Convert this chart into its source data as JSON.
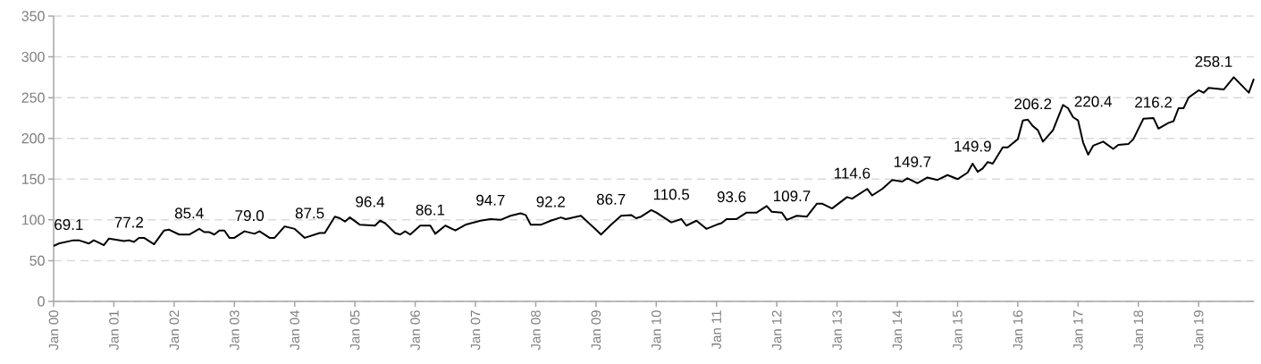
{
  "chart_data": {
    "type": "line",
    "x": [
      "2000-01",
      "2000-02",
      "2000-05",
      "2000-06",
      "2000-08",
      "2000-09",
      "2000-11",
      "2000-12",
      "2001-03",
      "2001-04",
      "2001-05",
      "2001-06",
      "2001-07",
      "2001-09",
      "2001-11",
      "2001-12",
      "2002-02",
      "2002-04",
      "2002-06",
      "2002-07",
      "2002-08",
      "2002-09",
      "2002-10",
      "2002-11",
      "2002-12",
      "2003-01",
      "2003-03",
      "2003-05",
      "2003-06",
      "2003-08",
      "2003-09",
      "2003-11",
      "2004-01",
      "2004-03",
      "2004-06",
      "2004-07",
      "2004-09",
      "2004-10",
      "2004-11",
      "2004-12",
      "2005-02",
      "2005-05",
      "2005-06",
      "2005-07",
      "2005-09",
      "2005-10",
      "2005-11",
      "2005-12",
      "2006-02",
      "2006-04",
      "2006-05",
      "2006-07",
      "2006-09",
      "2006-11",
      "2007-02",
      "2007-04",
      "2007-06",
      "2007-08",
      "2007-10",
      "2007-11",
      "2007-12",
      "2008-02",
      "2008-04",
      "2008-06",
      "2008-07",
      "2008-10",
      "2009-01",
      "2009-02",
      "2009-04",
      "2009-06",
      "2009-08",
      "2009-09",
      "2009-10",
      "2009-12",
      "2010-01",
      "2010-04",
      "2010-06",
      "2010-07",
      "2010-09",
      "2010-11",
      "2011-01",
      "2011-02",
      "2011-03",
      "2011-05",
      "2011-07",
      "2011-09",
      "2011-11",
      "2011-12",
      "2012-02",
      "2012-03",
      "2012-05",
      "2012-07",
      "2012-09",
      "2012-10",
      "2012-12",
      "2013-03",
      "2013-04",
      "2013-07",
      "2013-08",
      "2013-10",
      "2013-12",
      "2014-02",
      "2014-03",
      "2014-05",
      "2014-07",
      "2014-09",
      "2014-11",
      "2015-01",
      "2015-03",
      "2015-04",
      "2015-05",
      "2015-06",
      "2015-07",
      "2015-08",
      "2015-10",
      "2015-11",
      "2016-01",
      "2016-02",
      "2016-03",
      "2016-04",
      "2016-05",
      "2016-06",
      "2016-08",
      "2016-10",
      "2016-11",
      "2016-12",
      "2017-01",
      "2017-02",
      "2017-03",
      "2017-04",
      "2017-06",
      "2017-08",
      "2017-09",
      "2017-11",
      "2017-12",
      "2018-02",
      "2018-04",
      "2018-05",
      "2018-07",
      "2018-08",
      "2018-09",
      "2018-10",
      "2018-11",
      "2019-01",
      "2019-02",
      "2019-03",
      "2019-06",
      "2019-08",
      "2019-11",
      "2019-12"
    ],
    "series": [
      {
        "color": "#000000",
        "values": [
          68,
          71,
          75,
          75,
          71,
          75,
          69,
          77,
          74,
          75,
          73,
          78,
          78,
          70,
          87,
          88,
          82,
          82,
          89,
          85,
          85,
          82,
          87,
          87,
          78,
          78,
          86,
          83,
          86,
          78,
          78,
          92,
          89,
          78,
          84,
          84,
          104,
          102,
          98,
          103,
          94,
          93,
          99,
          96,
          84,
          82,
          86,
          82,
          93,
          93,
          83,
          93,
          87,
          94,
          99,
          101,
          100,
          105,
          108,
          106,
          94,
          94,
          99,
          103,
          101,
          105,
          88,
          82,
          94,
          105,
          106,
          102,
          104,
          112,
          109,
          97,
          101,
          93,
          99,
          89,
          94,
          96,
          101,
          101,
          109,
          109,
          117,
          110,
          109,
          100,
          105,
          104,
          120,
          120,
          114,
          128,
          126,
          138,
          130,
          138,
          149,
          147,
          151,
          145,
          152,
          149,
          155,
          150,
          158,
          169,
          159,
          163,
          171,
          169,
          189,
          189,
          199,
          222,
          223,
          215,
          210,
          196,
          210,
          241,
          237,
          226,
          222,
          195,
          180,
          191,
          196,
          187,
          192,
          193,
          199,
          224,
          225,
          212,
          219,
          221,
          237,
          237,
          250,
          259,
          256,
          262,
          260,
          275,
          256,
          273
        ]
      }
    ],
    "xlim": [
      "2000-01",
      "2019-12"
    ],
    "xticks": [
      {
        "value": "2000-01",
        "label": "Jan 00"
      },
      {
        "value": "2001-01",
        "label": "Jan 01"
      },
      {
        "value": "2002-01",
        "label": "Jan 02"
      },
      {
        "value": "2003-01",
        "label": "Jan 03"
      },
      {
        "value": "2004-01",
        "label": "Jan 04"
      },
      {
        "value": "2005-01",
        "label": "Jan 05"
      },
      {
        "value": "2006-01",
        "label": "Jan 06"
      },
      {
        "value": "2007-01",
        "label": "Jan 07"
      },
      {
        "value": "2008-01",
        "label": "Jan 08"
      },
      {
        "value": "2009-01",
        "label": "Jan 09"
      },
      {
        "value": "2010-01",
        "label": "Jan 10"
      },
      {
        "value": "2011-01",
        "label": "Jan 11"
      },
      {
        "value": "2012-01",
        "label": "Jan 12"
      },
      {
        "value": "2013-01",
        "label": "Jan 13"
      },
      {
        "value": "2014-01",
        "label": "Jan 14"
      },
      {
        "value": "2015-01",
        "label": "Jan 15"
      },
      {
        "value": "2016-01",
        "label": "Jan 16"
      },
      {
        "value": "2017-01",
        "label": "Jan 17"
      },
      {
        "value": "2018-01",
        "label": "Jan 18"
      },
      {
        "value": "2019-01",
        "label": "Jan 19"
      }
    ],
    "ylim": [
      0,
      350
    ],
    "yticks": [
      0,
      50,
      100,
      150,
      200,
      250,
      300,
      350
    ],
    "grid": "y",
    "marker": "none",
    "line_style": "solid",
    "annotations": [
      "69.1",
      "77.2",
      "85.4",
      "79.0",
      "87.5",
      "96.4",
      "86.1",
      "94.7",
      "92.2",
      "86.7",
      "110.5",
      "93.6",
      "109.7",
      "114.6",
      "149.7",
      "149.9",
      "206.2",
      "220.4",
      "216.2",
      "258.1"
    ]
  }
}
